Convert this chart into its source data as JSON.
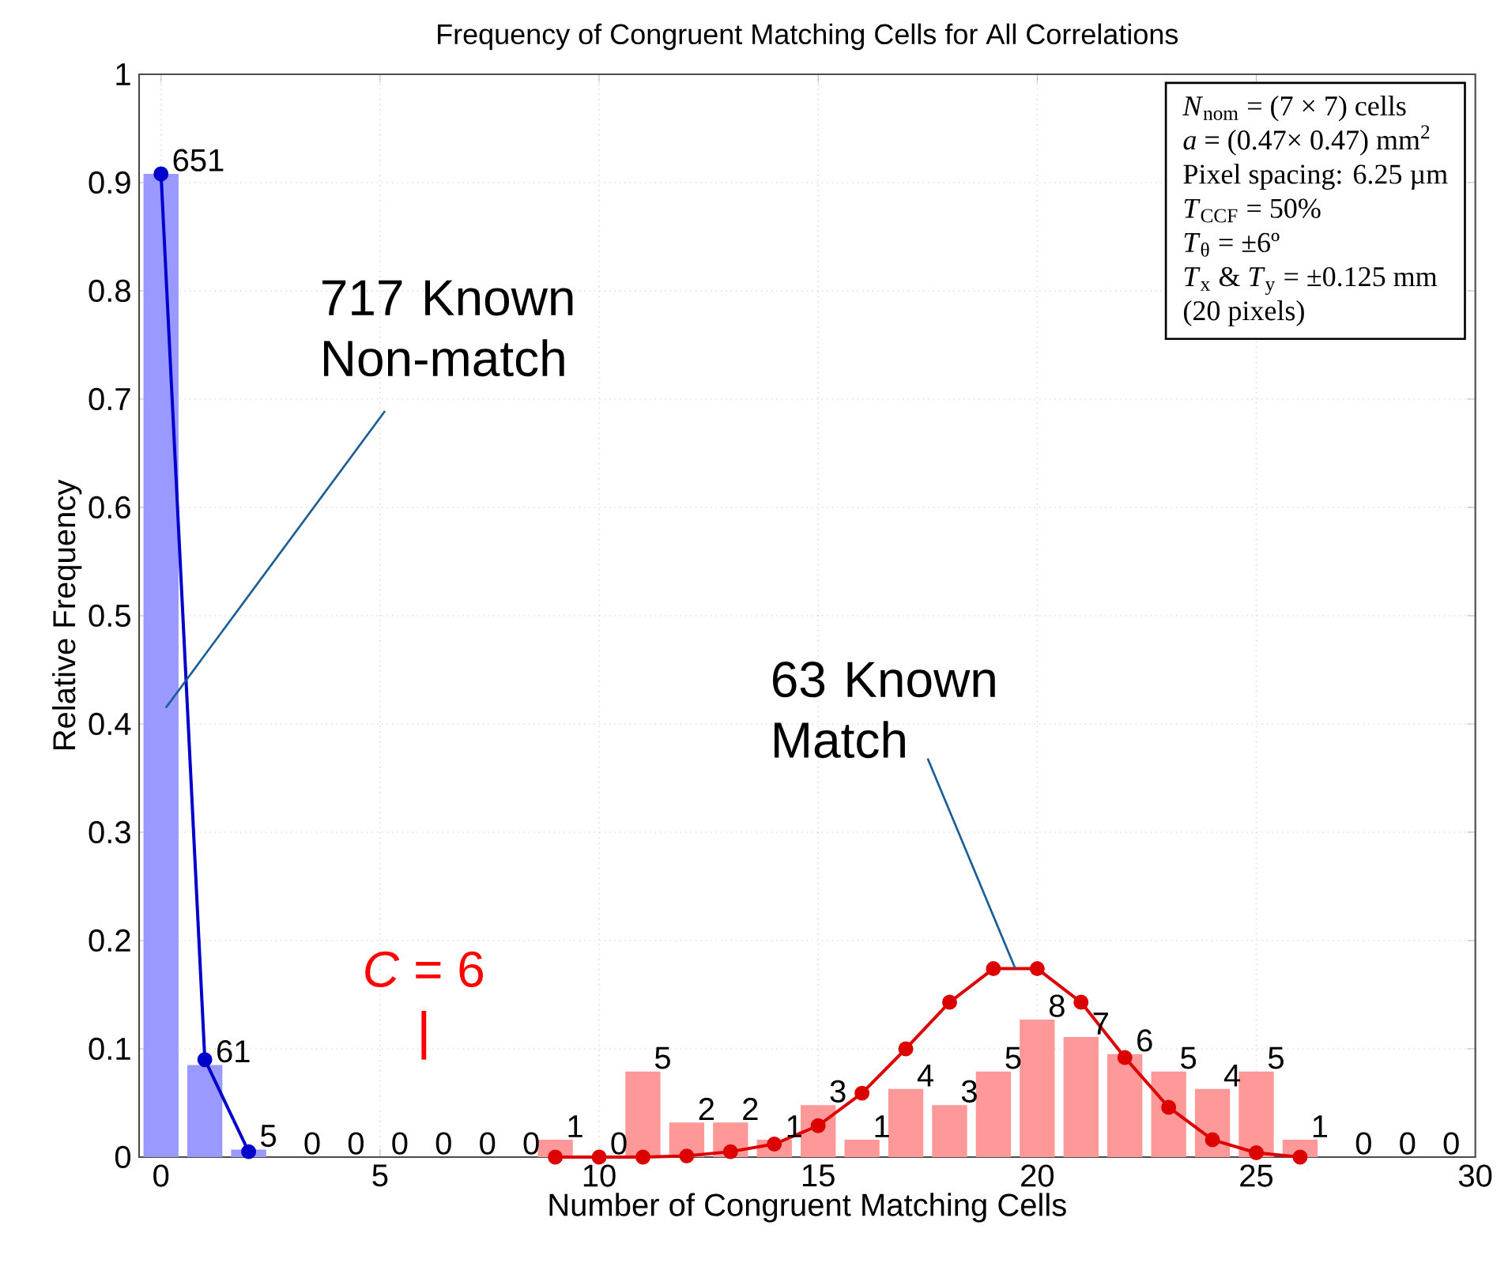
{
  "chart_data": {
    "type": "bar",
    "title": "Frequency of Congruent Matching Cells for All Correlations",
    "xlabel": "Number of Congruent Matching Cells",
    "ylabel": "Relative Frequency",
    "xlim": [
      -0.5,
      30
    ],
    "xticks": [
      0,
      5,
      10,
      15,
      20,
      25,
      30
    ],
    "ylim": [
      0,
      1
    ],
    "yticks": [
      0,
      0.1,
      0.2,
      0.3,
      0.4,
      0.5,
      0.6,
      0.7,
      0.8,
      0.9,
      1
    ],
    "grid": true,
    "series": [
      {
        "color": "#9999ff",
        "x": [
          0,
          1,
          2,
          3,
          4,
          5,
          6,
          7,
          8
        ],
        "values": [
          0.908,
          0.085,
          0.007,
          0,
          0,
          0,
          0,
          0,
          0
        ]
      },
      {
        "color": "#ff9999",
        "x": [
          9,
          10,
          11,
          12,
          13,
          14,
          15,
          16,
          17,
          18,
          19,
          20,
          21,
          22,
          23,
          24,
          25,
          26,
          27,
          28,
          29
        ],
        "values": [
          0.016,
          0,
          0.079,
          0.032,
          0.032,
          0.016,
          0.048,
          0.016,
          0.063,
          0.048,
          0.079,
          0.127,
          0.111,
          0.095,
          0.079,
          0.063,
          0.079,
          0.016,
          0,
          0,
          0
        ]
      },
      {
        "type": "line",
        "color": "#0000cc",
        "marker": "circle",
        "x": [
          0,
          1,
          2
        ],
        "values": [
          0.908,
          0.09,
          0.005
        ]
      },
      {
        "type": "line",
        "color": "#dd0000",
        "marker": "circle",
        "x": [
          9,
          10,
          11,
          12,
          13,
          14,
          15,
          16,
          17,
          18,
          19,
          20,
          21,
          22,
          23,
          24,
          25,
          26
        ],
        "values": [
          0,
          0,
          0,
          0.001,
          0.005,
          0.012,
          0.029,
          0.059,
          0.1,
          0.143,
          0.174,
          0.174,
          0.143,
          0.092,
          0.046,
          0.016,
          0.004,
          0
        ]
      }
    ],
    "ref_lines": [
      {
        "axis": "x",
        "value": 6,
        "label": "*C* = 6",
        "color": "#ff0000"
      }
    ],
    "annotations": [
      "717 Known Non-match",
      {
        "text": "63 Known Match",
        "x": 19.5,
        "y": 0.174
      },
      "*N*$_{nom}$ = (7 × 7) cells",
      "*a* = (0.47× 0.47) mm$^{2}$",
      "Pixel spacing: 6.25 µm",
      "*T*$_{CCF}$ = 50%",
      "*T*$_{θ}$ = ±6º",
      "*T*$_{x}$ & *T*$_{y}$ = ±0.125 mm",
      "(20 pixels)",
      {
        "text": "651",
        "x": 0,
        "y": 0.908
      },
      {
        "text": "61",
        "x": 1,
        "y": 0.085
      },
      {
        "text": "5",
        "x": 2,
        "y": 0.007
      },
      {
        "text": "0",
        "x": 3,
        "y": 0
      },
      {
        "text": "0",
        "x": 4,
        "y": 0
      },
      {
        "text": "0",
        "x": 5,
        "y": 0
      },
      {
        "text": "0",
        "x": 6,
        "y": 0
      },
      {
        "text": "0",
        "x": 7,
        "y": 0
      },
      {
        "text": "0",
        "x": 8,
        "y": 0
      },
      {
        "text": "1",
        "x": 9,
        "y": 0.016
      },
      {
        "text": "0",
        "x": 10,
        "y": 0
      },
      {
        "text": "5",
        "x": 11,
        "y": 0.079
      },
      {
        "text": "2",
        "x": 12,
        "y": 0.032
      },
      {
        "text": "2",
        "x": 13,
        "y": 0.032
      },
      {
        "text": "1",
        "x": 14,
        "y": 0.016
      },
      {
        "text": "3",
        "x": 15,
        "y": 0.048
      },
      {
        "text": "1",
        "x": 16,
        "y": 0.016
      },
      {
        "text": "4",
        "x": 17,
        "y": 0.063
      },
      {
        "text": "3",
        "x": 18,
        "y": 0.048
      },
      {
        "text": "5",
        "x": 19,
        "y": 0.079
      },
      {
        "text": "8",
        "x": 20,
        "y": 0.127
      },
      {
        "text": "7",
        "x": 21,
        "y": 0.111
      },
      {
        "text": "6",
        "x": 22,
        "y": 0.095
      },
      {
        "text": "5",
        "x": 23,
        "y": 0.079
      },
      {
        "text": "4",
        "x": 24,
        "y": 0.063
      },
      {
        "text": "5",
        "x": 25,
        "y": 0.079
      },
      {
        "text": "1",
        "x": 26,
        "y": 0.016
      },
      {
        "text": "0",
        "x": 27,
        "y": 0
      },
      {
        "text": "0",
        "x": 28,
        "y": 0
      },
      {
        "text": "0",
        "x": 29,
        "y": 0
      }
    ]
  }
}
